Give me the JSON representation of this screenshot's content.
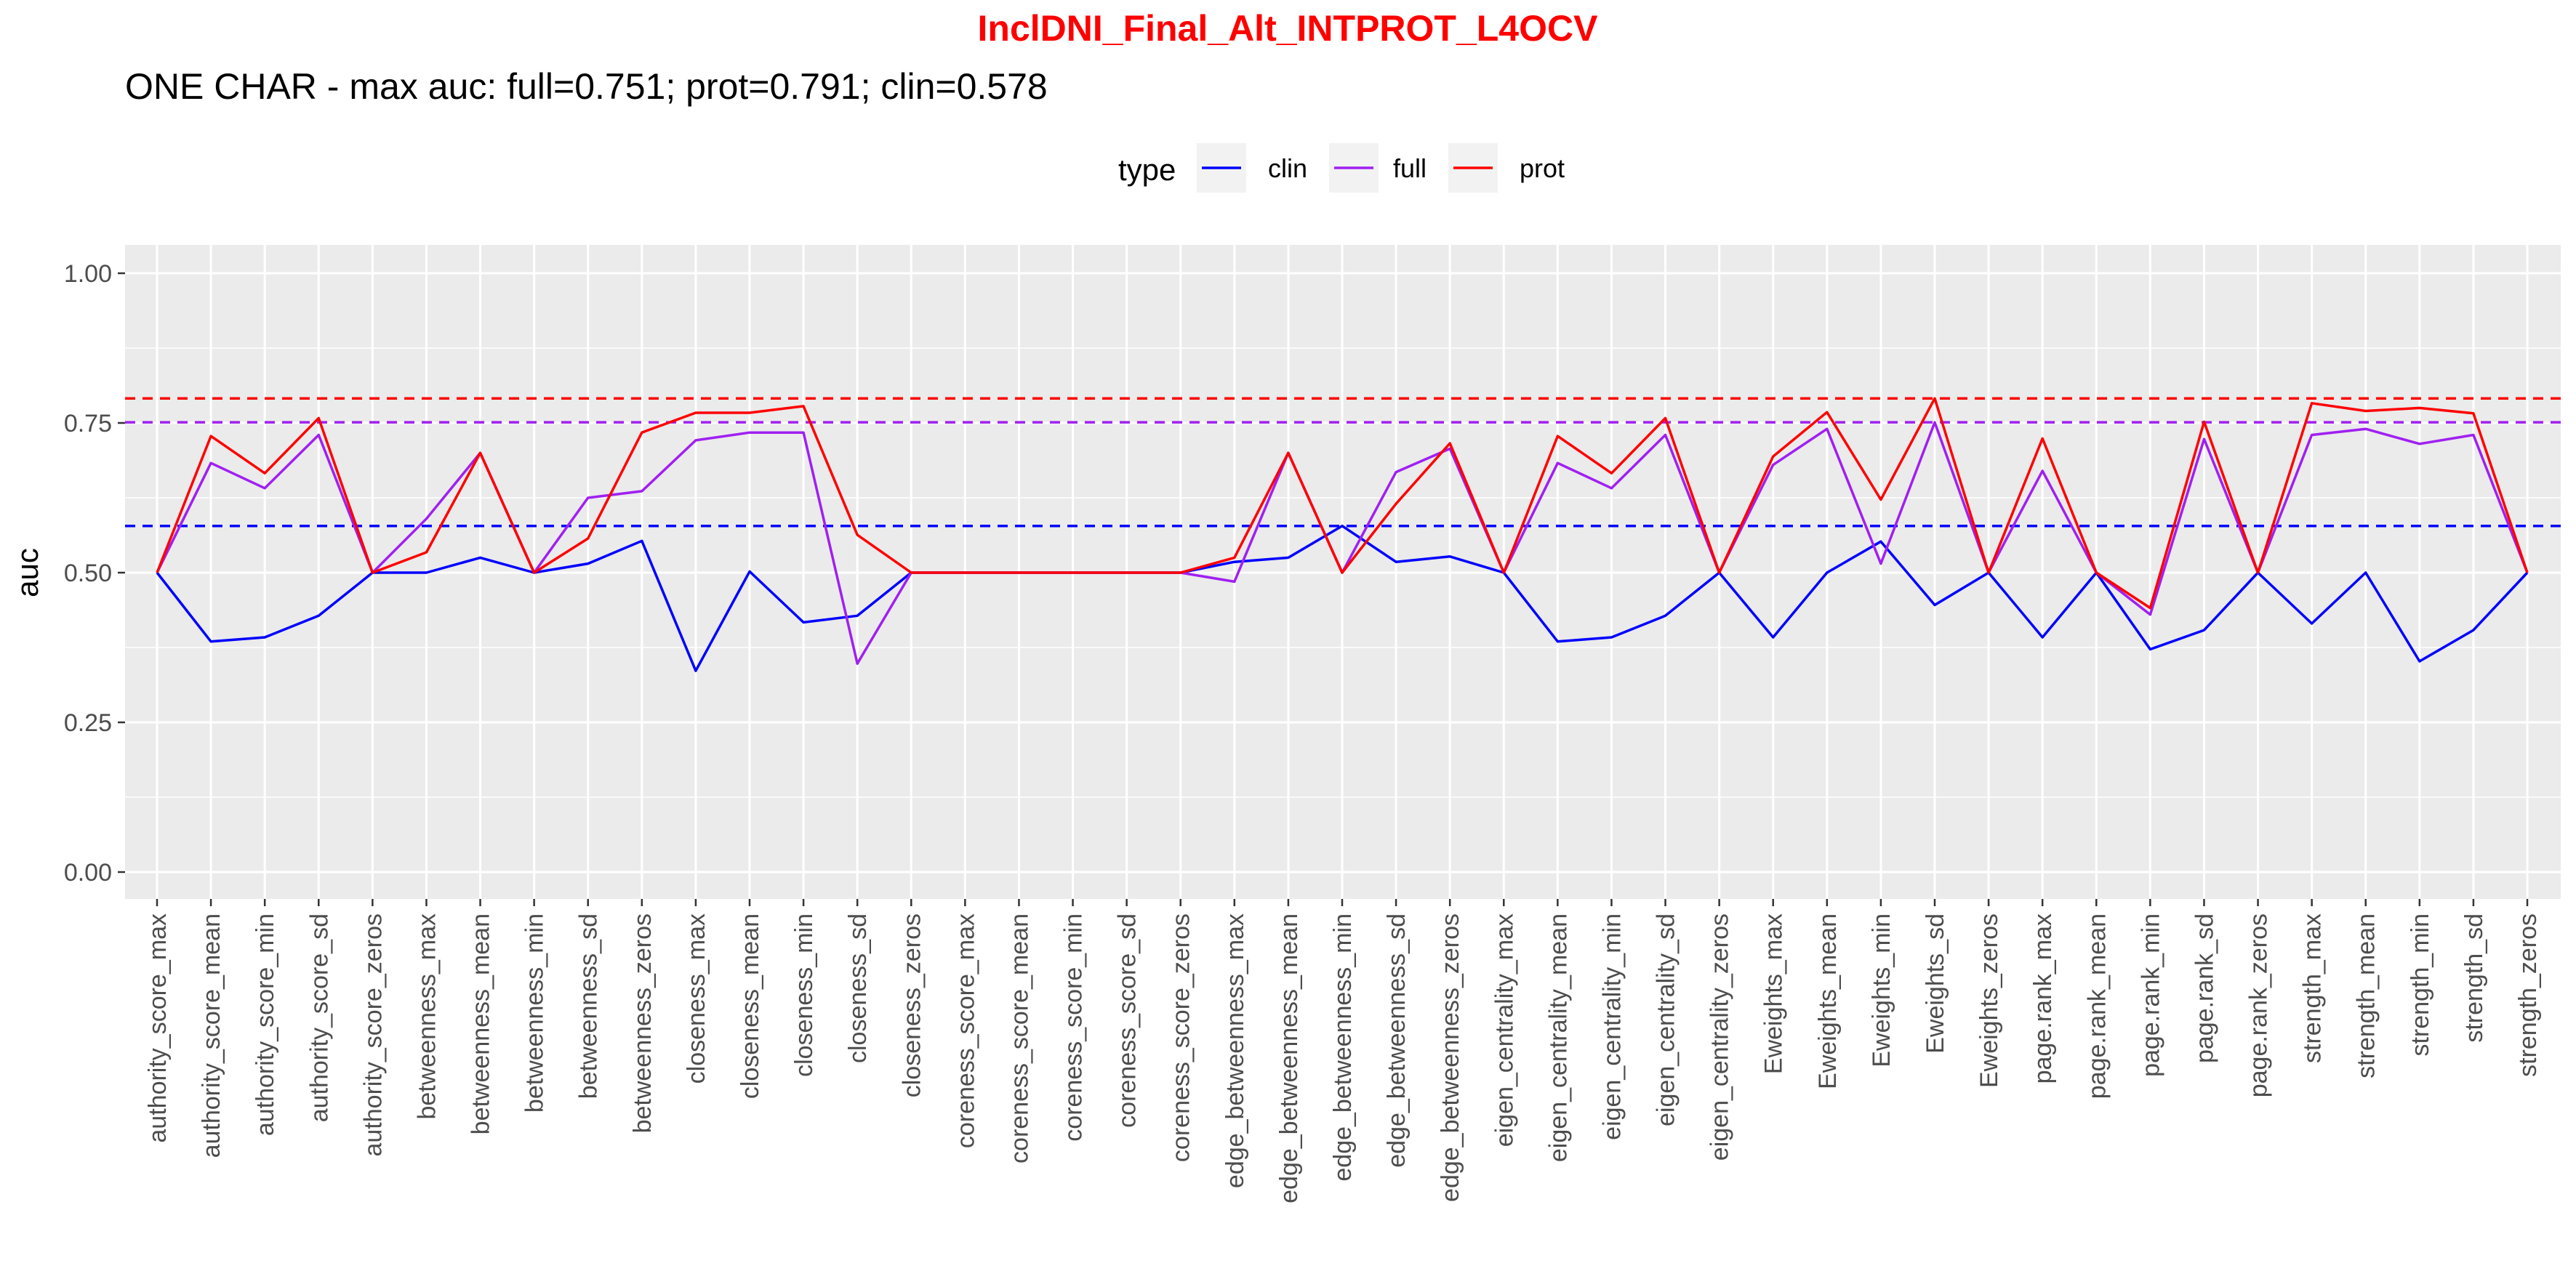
{
  "chart_data": {
    "type": "line",
    "title": "InclDNI_Final_Alt_INTPROT_L4OCV",
    "title_color": "#ff0000",
    "subtitle": "ONE CHAR - max auc: full=0.751; prot=0.791; clin=0.578",
    "xlabel": "",
    "ylabel": "auc",
    "ylim": [
      0,
      1
    ],
    "yticks": [
      0.0,
      0.25,
      0.5,
      0.75,
      1.0
    ],
    "ytick_labels": [
      "0.00",
      "0.25",
      "0.50",
      "0.75",
      "1.00"
    ],
    "grid": true,
    "legend": {
      "title": "type",
      "position": "top",
      "entries": [
        "clin",
        "full",
        "prot"
      ]
    },
    "categories": [
      "authority_score_max",
      "authority_score_mean",
      "authority_score_min",
      "authority_score_sd",
      "authority_score_zeros",
      "betweenness_max",
      "betweenness_mean",
      "betweenness_min",
      "betweenness_sd",
      "betweenness_zeros",
      "closeness_max",
      "closeness_mean",
      "closeness_min",
      "closeness_sd",
      "closeness_zeros",
      "coreness_score_max",
      "coreness_score_mean",
      "coreness_score_min",
      "coreness_score_sd",
      "coreness_score_zeros",
      "edge_betweenness_max",
      "edge_betweenness_mean",
      "edge_betweenness_min",
      "edge_betweenness_sd",
      "edge_betweenness_zeros",
      "eigen_centrality_max",
      "eigen_centrality_mean",
      "eigen_centrality_min",
      "eigen_centrality_sd",
      "eigen_centrality_zeros",
      "Eweights_max",
      "Eweights_mean",
      "Eweights_min",
      "Eweights_sd",
      "Eweights_zeros",
      "page.rank_max",
      "page.rank_mean",
      "page.rank_min",
      "page.rank_sd",
      "page.rank_zeros",
      "strength_max",
      "strength_mean",
      "strength_min",
      "strength_sd",
      "strength_zeros"
    ],
    "series": [
      {
        "name": "clin",
        "color": "#0000ff",
        "values": [
          0.5,
          0.385,
          0.392,
          0.428,
          0.5,
          0.5,
          0.525,
          0.5,
          0.515,
          0.553,
          0.336,
          0.502,
          0.417,
          0.428,
          0.5,
          0.5,
          0.5,
          0.5,
          0.5,
          0.5,
          0.518,
          0.525,
          0.578,
          0.518,
          0.527,
          0.5,
          0.385,
          0.392,
          0.428,
          0.5,
          0.392,
          0.5,
          0.552,
          0.446,
          0.5,
          0.392,
          0.5,
          0.372,
          0.404,
          0.5,
          0.415,
          0.5,
          0.352,
          0.404,
          0.5
        ]
      },
      {
        "name": "full",
        "color": "#a020f0",
        "values": [
          0.5,
          0.683,
          0.641,
          0.73,
          0.5,
          0.59,
          0.7,
          0.5,
          0.625,
          0.636,
          0.721,
          0.734,
          0.734,
          0.348,
          0.5,
          0.5,
          0.5,
          0.5,
          0.5,
          0.5,
          0.485,
          0.7,
          0.5,
          0.668,
          0.707,
          0.5,
          0.683,
          0.641,
          0.73,
          0.5,
          0.68,
          0.74,
          0.515,
          0.751,
          0.5,
          0.67,
          0.5,
          0.43,
          0.723,
          0.5,
          0.73,
          0.74,
          0.715,
          0.73,
          0.5
        ]
      },
      {
        "name": "prot",
        "color": "#ff0000",
        "values": [
          0.5,
          0.728,
          0.666,
          0.758,
          0.5,
          0.534,
          0.7,
          0.5,
          0.557,
          0.734,
          0.767,
          0.767,
          0.778,
          0.563,
          0.5,
          0.5,
          0.5,
          0.5,
          0.5,
          0.5,
          0.525,
          0.7,
          0.5,
          0.615,
          0.716,
          0.5,
          0.728,
          0.666,
          0.758,
          0.5,
          0.694,
          0.768,
          0.622,
          0.791,
          0.5,
          0.724,
          0.5,
          0.441,
          0.752,
          0.5,
          0.783,
          0.77,
          0.775,
          0.766,
          0.5
        ]
      }
    ],
    "reference_lines": [
      {
        "type": "prot",
        "y": 0.791,
        "color": "#ff0000",
        "style": "dashed"
      },
      {
        "type": "full",
        "y": 0.751,
        "color": "#a020f0",
        "style": "dashed"
      },
      {
        "type": "clin",
        "y": 0.578,
        "color": "#0000ff",
        "style": "dashed"
      }
    ],
    "panel_background": "#ebebeb",
    "legend_key_background": "#f2f2f2"
  }
}
